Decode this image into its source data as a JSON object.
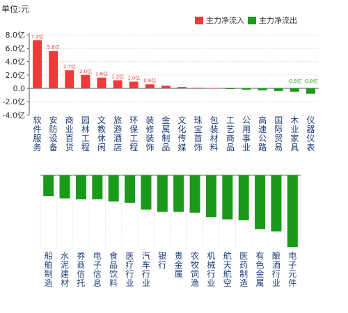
{
  "unit_label": "单位:元",
  "legend": {
    "inflow": {
      "label": "主力净流入",
      "color": "#f03a3a"
    },
    "outflow": {
      "label": "主力净流出",
      "color": "#1a9a1a"
    }
  },
  "chart_data": [
    {
      "type": "bar",
      "y_ticks": [
        "8.0亿",
        "6.0亿",
        "4.0亿",
        "2.0亿",
        "0.0",
        "-2.0亿",
        "-4.0亿"
      ],
      "ylim": [
        -4,
        8
      ],
      "categories": [
        "软件服务",
        "安防设备",
        "商业百货",
        "园林工程",
        "文教休闲",
        "旅游酒店",
        "环保工程",
        "装修装饰",
        "金属制品",
        "文化传媒",
        "珠宝首饰",
        "包装材料",
        "工艺商品",
        "公用事业",
        "高速公路",
        "国际贸易",
        "木业家具",
        "仪器仪表"
      ],
      "values": [
        7.2,
        5.6,
        2.7,
        2.0,
        1.6,
        1.2,
        1.0,
        0.6,
        0.4,
        0.2,
        0.1,
        0.05,
        -0.05,
        -0.2,
        -0.3,
        -0.4,
        -0.5,
        -0.8
      ],
      "value_labels": [
        "7.2亿",
        "5.6亿",
        "2.7亿",
        "2.0亿",
        "1.6亿",
        "1.2亿",
        "1.0亿",
        "0.6亿",
        "",
        "",
        "",
        "",
        "",
        "",
        "",
        "",
        "-0.5亿",
        "-0.8亿"
      ]
    },
    {
      "type": "bar",
      "categories": [
        "船舶制造",
        "水泥建材",
        "券商信托",
        "电子信息",
        "食品饮料",
        "医疗行业",
        "汽车行业",
        "银行",
        "贵金属",
        "农牧饲渔",
        "机械行业",
        "航天航空",
        "医药制造",
        "有色金属",
        "酿酒行业",
        "电子元件"
      ],
      "values": [
        -1.4,
        -1.55,
        -1.6,
        -1.6,
        -1.75,
        -1.85,
        -2.3,
        -2.45,
        -2.45,
        -2.5,
        -2.8,
        -2.95,
        -3.0,
        -3.6,
        -3.75,
        -4.8
      ]
    }
  ]
}
